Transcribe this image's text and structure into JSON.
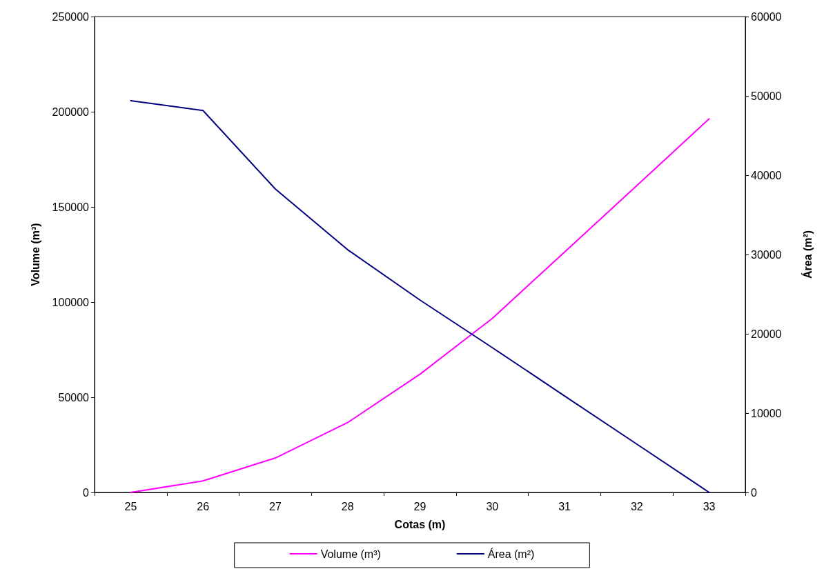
{
  "chart_data": {
    "type": "line",
    "xlabel": "Cotas (m)",
    "ylabel": "Volume (m³)",
    "y2label": "Área (m²)",
    "categories": [
      "25",
      "26",
      "27",
      "28",
      "29",
      "30",
      "31",
      "32",
      "33"
    ],
    "series": [
      {
        "name": "Volume (m³)",
        "color": "#ff00ff",
        "values": [
          0,
          6050,
          18100,
          36700,
          62100,
          91400,
          126300,
          161200,
          196300
        ]
      },
      {
        "name": "Área (m²)",
        "color": "#000080",
        "axis": "y2",
        "values": [
          49400,
          48150,
          38260,
          30600,
          24260,
          18260,
          12170,
          6090,
          0
        ]
      }
    ],
    "ylim": [
      0,
      250000
    ],
    "yticks": [
      0,
      50000,
      100000,
      150000,
      200000,
      250000
    ],
    "y2lim": [
      0,
      60000
    ],
    "y2ticks": [
      0,
      10000,
      20000,
      30000,
      40000,
      50000,
      60000
    ],
    "grid": false,
    "legend": "bottom",
    "marker": "none",
    "line_style": "solid"
  }
}
